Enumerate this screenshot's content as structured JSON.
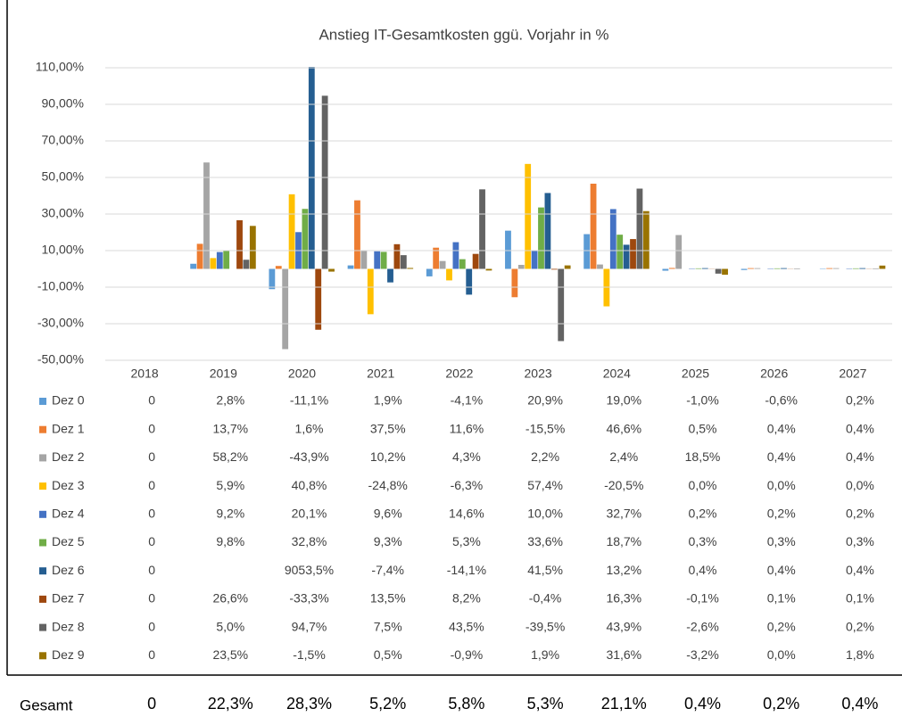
{
  "chart_data": {
    "type": "bar",
    "title": "Anstieg IT-Gesamtkosten ggü. Vorjahr in %",
    "categories": [
      "2018",
      "2019",
      "2020",
      "2021",
      "2022",
      "2023",
      "2024",
      "2025",
      "2026",
      "2027"
    ],
    "ylim": [
      -50,
      110
    ],
    "yticks": [
      {
        "value": -50,
        "label": "-50,00%"
      },
      {
        "value": -30,
        "label": "-30,00%"
      },
      {
        "value": -10,
        "label": "-10,00%"
      },
      {
        "value": 10,
        "label": "10,00%"
      },
      {
        "value": 30,
        "label": "30,00%"
      },
      {
        "value": 50,
        "label": "50,00%"
      },
      {
        "value": 70,
        "label": "70,00%"
      },
      {
        "value": 90,
        "label": "90,00%"
      },
      {
        "value": 110,
        "label": "110,00%"
      }
    ],
    "grid": true,
    "series": [
      {
        "name": "Dez 0",
        "color": "#5b9bd5",
        "values": [
          0,
          2.8,
          -11.1,
          1.9,
          -4.1,
          20.9,
          19.0,
          -1.0,
          -0.6,
          0.2
        ],
        "value_labels": [
          "0",
          "2,8%",
          "-11,1%",
          "1,9%",
          "-4,1%",
          "20,9%",
          "19,0%",
          "-1,0%",
          "-0,6%",
          "0,2%"
        ]
      },
      {
        "name": "Dez 1",
        "color": "#ed7d31",
        "values": [
          0,
          13.7,
          1.6,
          37.5,
          11.6,
          -15.5,
          46.6,
          0.5,
          0.4,
          0.4
        ],
        "value_labels": [
          "0",
          "13,7%",
          "1,6%",
          "37,5%",
          "11,6%",
          "-15,5%",
          "46,6%",
          "0,5%",
          "0,4%",
          "0,4%"
        ]
      },
      {
        "name": "Dez 2",
        "color": "#a5a5a5",
        "values": [
          0,
          58.2,
          -43.9,
          10.2,
          4.3,
          2.2,
          2.4,
          18.5,
          0.4,
          0.4
        ],
        "value_labels": [
          "0",
          "58,2%",
          "-43,9%",
          "10,2%",
          "4,3%",
          "2,2%",
          "2,4%",
          "18,5%",
          "0,4%",
          "0,4%"
        ]
      },
      {
        "name": "Dez 3",
        "color": "#ffc000",
        "values": [
          0,
          5.9,
          40.8,
          -24.8,
          -6.3,
          57.4,
          -20.5,
          0.0,
          0.0,
          0.0
        ],
        "value_labels": [
          "0",
          "5,9%",
          "40,8%",
          "-24,8%",
          "-6,3%",
          "57,4%",
          "-20,5%",
          "0,0%",
          "0,0%",
          "0,0%"
        ]
      },
      {
        "name": "Dez 4",
        "color": "#4472c4",
        "values": [
          0,
          9.2,
          20.1,
          9.6,
          14.6,
          10.0,
          32.7,
          0.2,
          0.2,
          0.2
        ],
        "value_labels": [
          "0",
          "9,2%",
          "20,1%",
          "9,6%",
          "14,6%",
          "10,0%",
          "32,7%",
          "0,2%",
          "0,2%",
          "0,2%"
        ]
      },
      {
        "name": "Dez 5",
        "color": "#70ad47",
        "values": [
          0,
          9.8,
          32.8,
          9.3,
          5.3,
          33.6,
          18.7,
          0.3,
          0.3,
          0.3
        ],
        "value_labels": [
          "0",
          "9,8%",
          "32,8%",
          "9,3%",
          "5,3%",
          "33,6%",
          "18,7%",
          "0,3%",
          "0,3%",
          "0,3%"
        ]
      },
      {
        "name": "Dez 6",
        "color": "#255e91",
        "values": [
          0,
          null,
          9053.5,
          -7.4,
          -14.1,
          41.5,
          13.2,
          0.4,
          0.4,
          0.4
        ],
        "value_labels": [
          "0",
          null,
          "9053,5%",
          "-7,4%",
          "-14,1%",
          "41,5%",
          "13,2%",
          "0,4%",
          "0,4%",
          "0,4%"
        ]
      },
      {
        "name": "Dez 7",
        "color": "#9e480e",
        "values": [
          0,
          26.6,
          -33.3,
          13.5,
          8.2,
          -0.4,
          16.3,
          -0.1,
          0.1,
          0.1
        ],
        "value_labels": [
          "0",
          "26,6%",
          "-33,3%",
          "13,5%",
          "8,2%",
          "-0,4%",
          "16,3%",
          "-0,1%",
          "0,1%",
          "0,1%"
        ]
      },
      {
        "name": "Dez 8",
        "color": "#636363",
        "values": [
          0,
          5.0,
          94.7,
          7.5,
          43.5,
          -39.5,
          43.9,
          -2.6,
          0.2,
          0.2
        ],
        "value_labels": [
          "0",
          "5,0%",
          "94,7%",
          "7,5%",
          "43,5%",
          "-39,5%",
          "43,9%",
          "-2,6%",
          "0,2%",
          "0,2%"
        ]
      },
      {
        "name": "Dez 9",
        "color": "#997300",
        "values": [
          0,
          23.5,
          -1.5,
          0.5,
          -0.9,
          1.9,
          31.6,
          -3.2,
          0.0,
          1.8
        ],
        "value_labels": [
          "0",
          "23,5%",
          "-1,5%",
          "0,5%",
          "-0,9%",
          "1,9%",
          "31,6%",
          "-3,2%",
          "0,0%",
          "1,8%"
        ]
      }
    ],
    "totals": {
      "name": "Gesamt",
      "values": [
        0,
        22.3,
        28.3,
        5.2,
        5.8,
        5.3,
        21.1,
        0.4,
        0.2,
        0.4
      ],
      "value_labels": [
        "0",
        "22,3%",
        "28,3%",
        "5,2%",
        "5,8%",
        "5,3%",
        "21,1%",
        "0,4%",
        "0,2%",
        "0,4%"
      ]
    }
  }
}
